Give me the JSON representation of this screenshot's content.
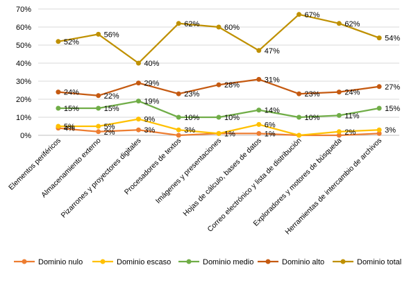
{
  "chart_data": {
    "type": "line",
    "categories": [
      "Elementos periféricos",
      "Almacenamiento externo",
      "Pizarrones y proyectores digitales",
      "Procesadores de textos",
      "Imágenes y presentaciones",
      "Hojas de cálculo, bases de datos",
      "Correo electrónico y lista de distribución",
      "Exploradores y motores de búsqueda",
      "Herramientas de intercambio de archivos"
    ],
    "y_ticks": [
      "0%",
      "10%",
      "20%",
      "30%",
      "40%",
      "50%",
      "60%",
      "70%"
    ],
    "ylim": [
      0,
      70
    ],
    "grid": true,
    "legend_position": "bottom",
    "series": [
      {
        "name": "Dominio nulo",
        "color": "#ED7D31",
        "values": [
          4,
          2,
          3,
          0,
          1,
          1,
          0,
          0,
          1
        ],
        "labels": [
          "4%",
          "2%",
          "3%",
          "",
          "",
          "1%",
          "",
          "",
          ""
        ]
      },
      {
        "name": "Dominio escaso",
        "color": "#FFC000",
        "values": [
          5,
          5,
          9,
          3,
          1,
          6,
          0,
          2,
          3
        ],
        "labels": [
          "5%",
          "5%",
          "9%",
          "3%",
          "1%",
          "6%",
          "",
          "2%",
          "3%"
        ]
      },
      {
        "name": "Dominio medio",
        "color": "#70AD47",
        "values": [
          15,
          15,
          19,
          10,
          10,
          14,
          10,
          11,
          15
        ],
        "labels": [
          "15%",
          "15%",
          "19%",
          "10%",
          "10%",
          "14%",
          "10%",
          "11%",
          "15%"
        ]
      },
      {
        "name": "Dominio  alto",
        "color": "#C55A11",
        "values": [
          24,
          22,
          29,
          23,
          28,
          31,
          23,
          24,
          27
        ],
        "labels": [
          "24%",
          "22%",
          "29%",
          "23%",
          "28%",
          "31%",
          "23%",
          "24%",
          "27%"
        ]
      },
      {
        "name": "Dominio total",
        "color": "#BF9000",
        "values": [
          52,
          56,
          40,
          62,
          60,
          47,
          67,
          62,
          54
        ],
        "labels": [
          "52%",
          "56%",
          "40%",
          "62%",
          "60%",
          "47%",
          "67%",
          "62%",
          "54%"
        ]
      }
    ]
  }
}
